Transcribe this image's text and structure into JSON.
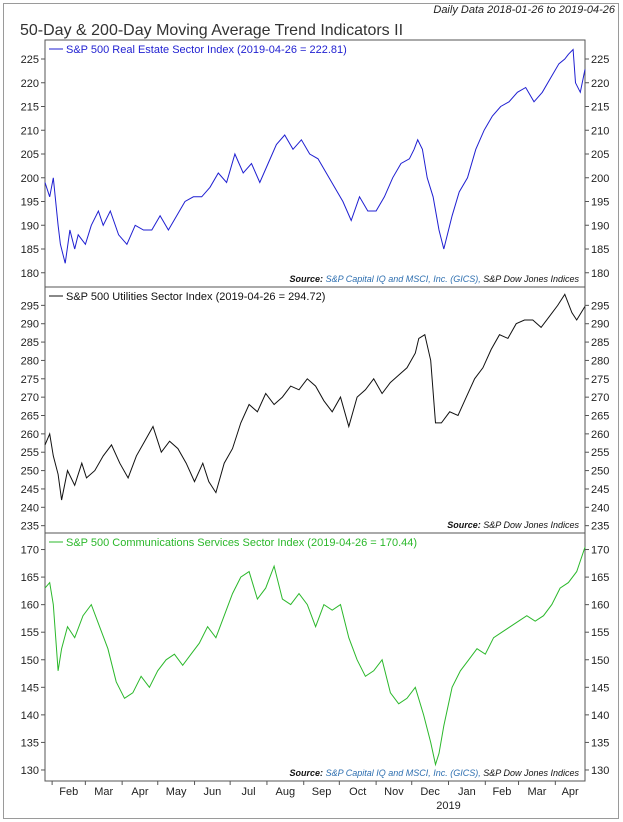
{
  "header": {
    "date_range": "Daily Data 2018-01-26 to 2019-04-26",
    "title": "50-Day & 200-Day Moving Average Trend Indicators II"
  },
  "x_axis": {
    "month_labels": [
      "Feb",
      "Mar",
      "Apr",
      "May",
      "Jun",
      "Jul",
      "Aug",
      "Sep",
      "Oct",
      "Nov",
      "Dec",
      "Jan",
      "Feb",
      "Mar",
      "Apr"
    ],
    "month_dates": [
      "2018-02-01",
      "2018-03-01",
      "2018-04-01",
      "2018-05-01",
      "2018-06-01",
      "2018-07-01",
      "2018-08-01",
      "2018-09-01",
      "2018-10-01",
      "2018-11-01",
      "2018-12-01",
      "2019-01-01",
      "2019-02-01",
      "2019-03-01",
      "2019-04-01"
    ],
    "start_date": "2018-01-26",
    "end_date": "2019-04-26",
    "year_label": "2019"
  },
  "chart_data": [
    {
      "type": "line",
      "series": [
        {
          "name": "S&P 500 Real Estate Sector Index (2019-04-26 = 222.81)",
          "color": "#1f1fd1"
        }
      ],
      "legend": "S&P 500 Real Estate Sector Index (2019-04-26 = 222.81)",
      "ylim": [
        177,
        229
      ],
      "yticks": [
        180,
        185,
        190,
        195,
        200,
        205,
        210,
        215,
        220,
        225
      ],
      "x": [
        "2018-01-26",
        "2018-01-30",
        "2018-02-02",
        "2018-02-06",
        "2018-02-08",
        "2018-02-12",
        "2018-02-16",
        "2018-02-20",
        "2018-02-23",
        "2018-03-01",
        "2018-03-06",
        "2018-03-12",
        "2018-03-16",
        "2018-03-22",
        "2018-03-29",
        "2018-04-05",
        "2018-04-12",
        "2018-04-19",
        "2018-04-26",
        "2018-05-03",
        "2018-05-10",
        "2018-05-17",
        "2018-05-24",
        "2018-05-31",
        "2018-06-07",
        "2018-06-14",
        "2018-06-21",
        "2018-06-28",
        "2018-07-05",
        "2018-07-12",
        "2018-07-19",
        "2018-07-26",
        "2018-08-02",
        "2018-08-09",
        "2018-08-16",
        "2018-08-23",
        "2018-08-30",
        "2018-09-06",
        "2018-09-13",
        "2018-09-20",
        "2018-09-27",
        "2018-10-04",
        "2018-10-11",
        "2018-10-18",
        "2018-10-25",
        "2018-11-01",
        "2018-11-08",
        "2018-11-15",
        "2018-11-22",
        "2018-11-29",
        "2018-12-03",
        "2018-12-06",
        "2018-12-10",
        "2018-12-14",
        "2018-12-19",
        "2018-12-24",
        "2018-12-28",
        "2019-01-04",
        "2019-01-10",
        "2019-01-17",
        "2019-01-24",
        "2019-01-31",
        "2019-02-07",
        "2019-02-14",
        "2019-02-21",
        "2019-02-28",
        "2019-03-07",
        "2019-03-14",
        "2019-03-21",
        "2019-03-28",
        "2019-04-04",
        "2019-04-09",
        "2019-04-12",
        "2019-04-16",
        "2019-04-18",
        "2019-04-22",
        "2019-04-26"
      ],
      "y": [
        199,
        196,
        200,
        190,
        186,
        182,
        189,
        185,
        188,
        186,
        190,
        193,
        190,
        193,
        188,
        186,
        190,
        189,
        189,
        192,
        189,
        192,
        195,
        196,
        196,
        198,
        201,
        199,
        205,
        201,
        203,
        199,
        203,
        207,
        209,
        206,
        208,
        205,
        204,
        201,
        198,
        195,
        191,
        196,
        193,
        193,
        196,
        200,
        203,
        204,
        206,
        208,
        206,
        200,
        196,
        189,
        185,
        192,
        197,
        200,
        206,
        210,
        213,
        215,
        216,
        218,
        219,
        216,
        218,
        221,
        224,
        225,
        226,
        227,
        220,
        218,
        222.81
      ]
    },
    {
      "type": "line",
      "series": [
        {
          "name": "S&P 500 Utilities Sector Index (2019-04-26 = 294.72)",
          "color": "#111111"
        }
      ],
      "legend": "S&P 500 Utilities Sector Index (2019-04-26 = 294.72)",
      "ylim": [
        233,
        300
      ],
      "yticks": [
        235,
        240,
        245,
        250,
        255,
        260,
        265,
        270,
        275,
        280,
        285,
        290,
        295
      ],
      "x": [
        "2018-01-26",
        "2018-01-30",
        "2018-02-02",
        "2018-02-06",
        "2018-02-09",
        "2018-02-14",
        "2018-02-20",
        "2018-02-26",
        "2018-03-02",
        "2018-03-09",
        "2018-03-16",
        "2018-03-23",
        "2018-03-30",
        "2018-04-06",
        "2018-04-13",
        "2018-04-20",
        "2018-04-27",
        "2018-05-04",
        "2018-05-11",
        "2018-05-18",
        "2018-05-25",
        "2018-06-01",
        "2018-06-08",
        "2018-06-13",
        "2018-06-19",
        "2018-06-26",
        "2018-07-03",
        "2018-07-10",
        "2018-07-17",
        "2018-07-24",
        "2018-07-31",
        "2018-08-07",
        "2018-08-14",
        "2018-08-21",
        "2018-08-28",
        "2018-09-04",
        "2018-09-11",
        "2018-09-18",
        "2018-09-25",
        "2018-10-02",
        "2018-10-09",
        "2018-10-16",
        "2018-10-23",
        "2018-10-30",
        "2018-11-06",
        "2018-11-13",
        "2018-11-20",
        "2018-11-27",
        "2018-12-04",
        "2018-12-07",
        "2018-12-12",
        "2018-12-17",
        "2018-12-21",
        "2018-12-26",
        "2019-01-02",
        "2019-01-09",
        "2019-01-16",
        "2019-01-23",
        "2019-01-30",
        "2019-02-06",
        "2019-02-13",
        "2019-02-20",
        "2019-02-27",
        "2019-03-06",
        "2019-03-13",
        "2019-03-20",
        "2019-03-27",
        "2019-04-03",
        "2019-04-09",
        "2019-04-15",
        "2019-04-19",
        "2019-04-26"
      ],
      "y": [
        257,
        260,
        254,
        249,
        242,
        250,
        246,
        252,
        248,
        250,
        254,
        257,
        252,
        248,
        254,
        258,
        262,
        255,
        258,
        256,
        252,
        247,
        252,
        247,
        244,
        252,
        256,
        263,
        268,
        266,
        271,
        268,
        270,
        273,
        272,
        275,
        273,
        269,
        266,
        270,
        262,
        270,
        272,
        275,
        271,
        274,
        276,
        278,
        282,
        286,
        287,
        280,
        263,
        263,
        266,
        265,
        270,
        275,
        278,
        283,
        287,
        286,
        290,
        291,
        291,
        289,
        292,
        295,
        298,
        293,
        291,
        294.72
      ]
    },
    {
      "type": "line",
      "series": [
        {
          "name": "S&P 500 Communications Services Sector Index (2019-04-26 = 170.44)",
          "color": "#2bb82b"
        }
      ],
      "legend": "S&P 500 Communications Services Sector Index (2019-04-26 = 170.44)",
      "ylim": [
        128,
        173
      ],
      "yticks": [
        130,
        135,
        140,
        145,
        150,
        155,
        160,
        165,
        170
      ],
      "x": [
        "2018-01-26",
        "2018-01-30",
        "2018-02-02",
        "2018-02-06",
        "2018-02-09",
        "2018-02-14",
        "2018-02-20",
        "2018-02-27",
        "2018-03-06",
        "2018-03-13",
        "2018-03-20",
        "2018-03-27",
        "2018-04-03",
        "2018-04-10",
        "2018-04-17",
        "2018-04-24",
        "2018-05-01",
        "2018-05-08",
        "2018-05-15",
        "2018-05-22",
        "2018-05-29",
        "2018-06-05",
        "2018-06-12",
        "2018-06-19",
        "2018-06-26",
        "2018-07-03",
        "2018-07-10",
        "2018-07-17",
        "2018-07-24",
        "2018-07-31",
        "2018-08-07",
        "2018-08-14",
        "2018-08-21",
        "2018-08-28",
        "2018-09-04",
        "2018-09-11",
        "2018-09-18",
        "2018-09-25",
        "2018-10-02",
        "2018-10-09",
        "2018-10-16",
        "2018-10-23",
        "2018-10-30",
        "2018-11-06",
        "2018-11-13",
        "2018-11-20",
        "2018-11-27",
        "2018-12-04",
        "2018-12-11",
        "2018-12-17",
        "2018-12-21",
        "2018-12-24",
        "2018-12-28",
        "2019-01-04",
        "2019-01-11",
        "2019-01-18",
        "2019-01-25",
        "2019-02-01",
        "2019-02-08",
        "2019-02-15",
        "2019-02-22",
        "2019-03-01",
        "2019-03-08",
        "2019-03-15",
        "2019-03-22",
        "2019-03-29",
        "2019-04-05",
        "2019-04-12",
        "2019-04-19",
        "2019-04-26"
      ],
      "y": [
        163,
        164,
        160,
        148,
        152,
        156,
        154,
        158,
        160,
        156,
        152,
        146,
        143,
        144,
        147,
        145,
        148,
        150,
        151,
        149,
        151,
        153,
        156,
        154,
        158,
        162,
        165,
        166,
        161,
        163,
        167,
        161,
        160,
        162,
        160,
        156,
        160,
        159,
        160,
        154,
        150,
        147,
        148,
        150,
        144,
        142,
        143,
        145,
        140,
        135,
        131,
        133,
        138,
        145,
        148,
        150,
        152,
        151,
        154,
        155,
        156,
        157,
        158,
        157,
        158,
        160,
        163,
        164,
        166,
        170.44
      ]
    }
  ],
  "sources": {
    "label": "Source:",
    "panel1": [
      "S&P Capital IQ and MSCI, Inc. (GICS),",
      "S&P Dow Jones Indices"
    ],
    "panel2": [
      "S&P Dow Jones Indices"
    ],
    "panel3": [
      "S&P Capital IQ and MSCI, Inc. (GICS),",
      "S&P Dow Jones Indices"
    ]
  }
}
